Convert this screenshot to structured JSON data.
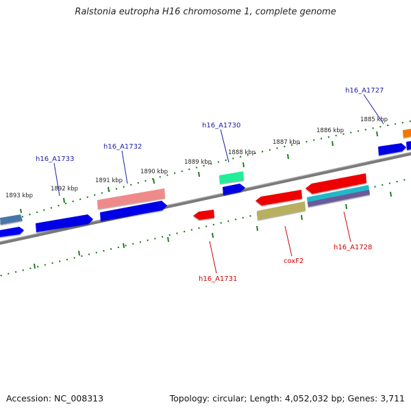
{
  "title": "Ralstonia eutropha H16 chromosome 1, complete genome",
  "footer": {
    "accession": "Accession: NC_008313",
    "topology": "Topology: circular; Length: 4,052,032 bp; Genes: 3,711"
  },
  "colors": {
    "backbone": "#808080",
    "tick": "#1f7a1f",
    "forward_label": "#1a1aa8",
    "reverse_label": "#cc0000"
  },
  "kbp_ticks": [
    {
      "label": "1893 kbp"
    },
    {
      "label": "1892 kbp"
    },
    {
      "label": "1891 kbp"
    },
    {
      "label": "1890 kbp"
    },
    {
      "label": "1889 kbp"
    },
    {
      "label": "1888 kbp"
    },
    {
      "label": "1887 kbp"
    },
    {
      "label": "1886 kbp"
    },
    {
      "label": "1885 kbp"
    }
  ],
  "gene_labels": [
    {
      "text": "h16_A1733",
      "strand": "forward"
    },
    {
      "text": "h16_A1732",
      "strand": "forward"
    },
    {
      "text": "h16_A1730",
      "strand": "forward"
    },
    {
      "text": "h16_A1727",
      "strand": "forward"
    },
    {
      "text": "h16_A1731",
      "strand": "reverse"
    },
    {
      "text": "coxF2",
      "strand": "reverse"
    },
    {
      "text": "h16_A1728",
      "strand": "reverse"
    }
  ]
}
